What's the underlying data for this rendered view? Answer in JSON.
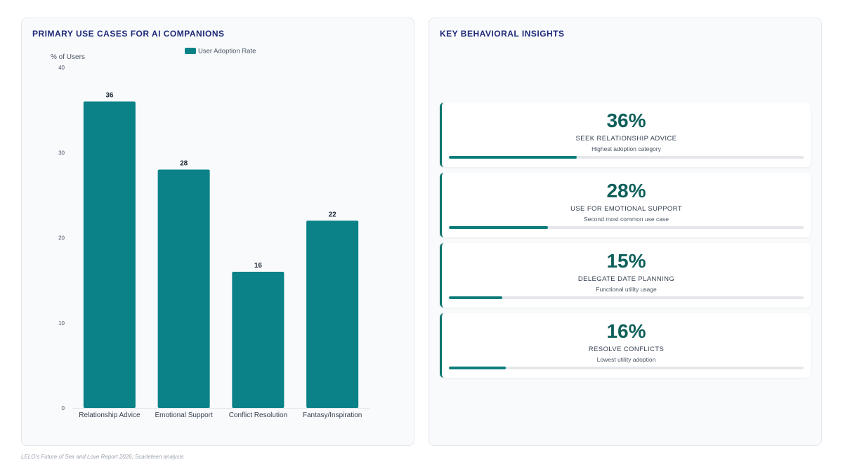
{
  "left_panel": {
    "title": "PRIMARY USE CASES FOR AI COMPANIONS"
  },
  "chart_data": {
    "type": "bar",
    "categories": [
      "Relationship Advice",
      "Emotional Support",
      "Conflict Resolution",
      "Fantasy/Inspiration"
    ],
    "series": [
      {
        "name": "User Adoption Rate",
        "values": [
          36,
          28,
          16,
          22
        ]
      }
    ],
    "ylabel": "% of Users",
    "xlabel": "",
    "ylim": [
      0,
      40
    ],
    "yticks": [
      0,
      10,
      20,
      30,
      40
    ],
    "data_labels": true,
    "legend_position": "top",
    "bar_color": "#0a8288",
    "grid": false
  },
  "right_panel": {
    "title": "KEY BEHAVIORAL INSIGHTS",
    "cards": [
      {
        "value": "36%",
        "label": "SEEK RELATIONSHIP ADVICE",
        "sub": "Highest adoption category",
        "progress": 0.36
      },
      {
        "value": "28%",
        "label": "USE FOR EMOTIONAL SUPPORT",
        "sub": "Second most common use case",
        "progress": 0.28
      },
      {
        "value": "15%",
        "label": "DELEGATE DATE PLANNING",
        "sub": "Functional utility usage",
        "progress": 0.15
      },
      {
        "value": "16%",
        "label": "RESOLVE CONFLICTS",
        "sub": "Lowest utility adoption",
        "progress": 0.16
      }
    ]
  },
  "source": "LELO's Future of Sex and Love Report 2026; Scarleteen analysis",
  "colors": {
    "accent": "#0f7c7c",
    "title": "#1e2a78",
    "value_text": "#0f5f5a"
  }
}
